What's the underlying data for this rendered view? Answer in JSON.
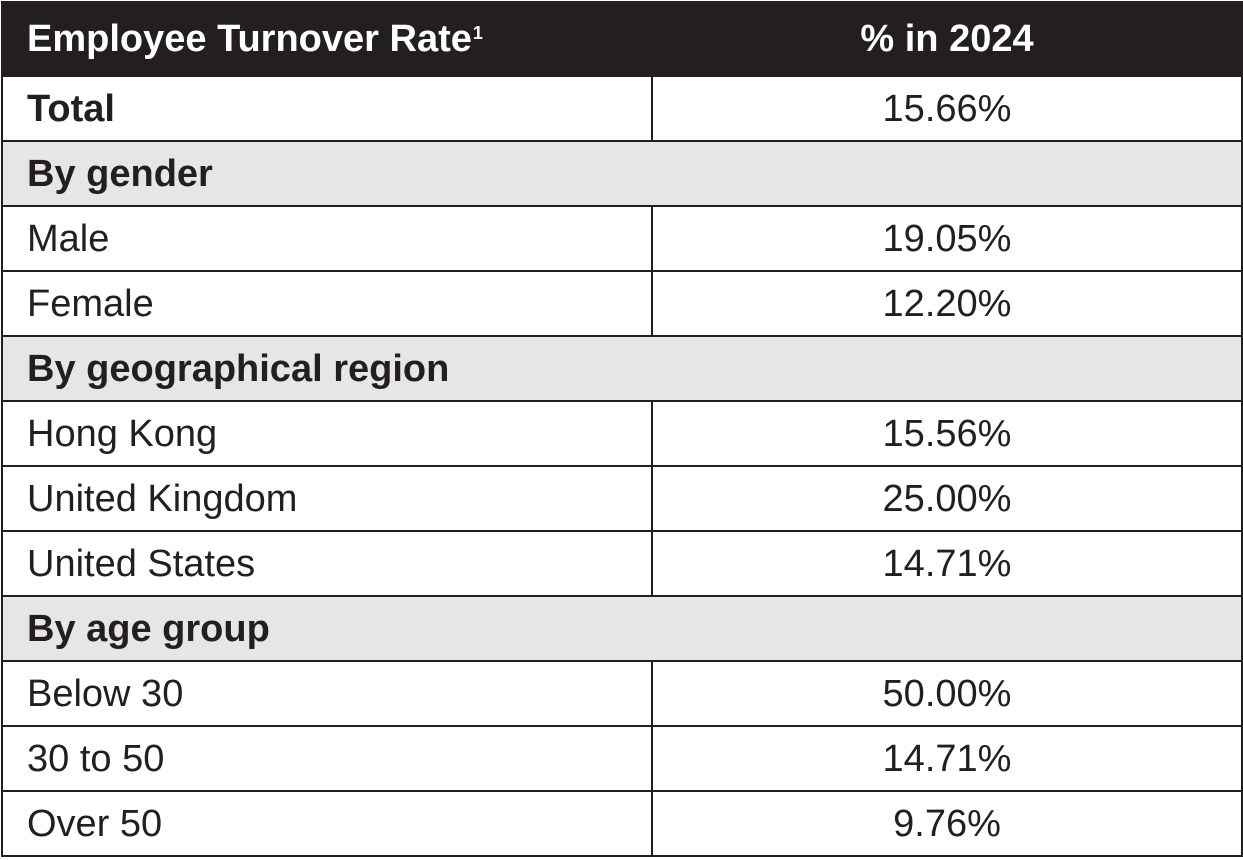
{
  "header": {
    "label": "Employee Turnover Rate",
    "footnote": "1",
    "value": "% in 2024"
  },
  "total": {
    "label": "Total",
    "value": "15.66%"
  },
  "sections": [
    {
      "title": "By gender",
      "rows": [
        {
          "label": "Male",
          "value": "19.05%"
        },
        {
          "label": "Female",
          "value": "12.20%"
        }
      ]
    },
    {
      "title": "By geographical region",
      "rows": [
        {
          "label": "Hong Kong",
          "value": "15.56%"
        },
        {
          "label": "United Kingdom",
          "value": "25.00%"
        },
        {
          "label": "United States",
          "value": "14.71%"
        }
      ]
    },
    {
      "title": "By age group",
      "rows": [
        {
          "label": "Below 30",
          "value": "50.00%"
        },
        {
          "label": "30 to 50",
          "value": "14.71%"
        },
        {
          "label": "Over 50",
          "value": "9.76%"
        }
      ]
    }
  ],
  "colors": {
    "header_bg": "#231f20",
    "header_text": "#ffffff",
    "section_bg": "#e6e6e6",
    "border": "#231f20"
  }
}
